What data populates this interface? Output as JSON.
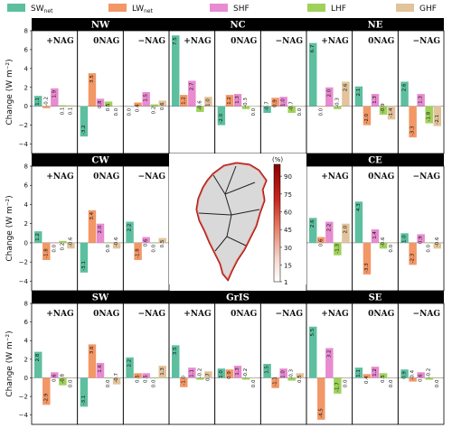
{
  "legend": [
    {
      "label": "SWnet",
      "color": "#5dbf9f"
    },
    {
      "label": "LWnet",
      "color": "#f29766"
    },
    {
      "label": "SHF",
      "color": "#e88bd0"
    },
    {
      "label": "LHF",
      "color": "#9fd15a"
    },
    {
      "label": "GHF",
      "color": "#e2c39b"
    }
  ],
  "y_axis_label": "Change (W m⁻²)",
  "scenarios": [
    "+NAG",
    "0NAG",
    "−NAG"
  ],
  "map": {
    "colorbar_title": "(%)",
    "colorbar_ticks": [
      "90",
      "75",
      "60",
      "45",
      "30",
      "15",
      "1"
    ],
    "colorbar_range": [
      1,
      100
    ]
  },
  "chart_data": [
    {
      "type": "bar",
      "region": "NW",
      "ylim": [
        -5,
        8
      ],
      "yticks": [
        -4,
        -2,
        0,
        2,
        4,
        6,
        8
      ],
      "series": [
        {
          "name": "SWnet",
          "values": [
            1.1,
            -3.2,
            0.0
          ]
        },
        {
          "name": "LWnet",
          "values": [
            -0.2,
            3.5,
            0.4
          ]
        },
        {
          "name": "SHF",
          "values": [
            1.9,
            0.8,
            1.5
          ]
        },
        {
          "name": "LHF",
          "values": [
            0.1,
            0.5,
            0.2
          ]
        },
        {
          "name": "GHF",
          "values": [
            0.1,
            0.0,
            0.6
          ]
        }
      ]
    },
    {
      "type": "bar",
      "region": "NC",
      "ylim": [
        -5,
        8
      ],
      "yticks": [],
      "series": [
        {
          "name": "SWnet",
          "values": [
            7.5,
            -2.0,
            -0.7
          ]
        },
        {
          "name": "LWnet",
          "values": [
            1.2,
            1.2,
            0.9
          ]
        },
        {
          "name": "SHF",
          "values": [
            2.7,
            1.3,
            1.0
          ]
        },
        {
          "name": "LHF",
          "values": [
            -0.6,
            -0.3,
            -0.7
          ]
        },
        {
          "name": "GHF",
          "values": [
            1.0,
            0.0,
            0.0
          ]
        }
      ]
    },
    {
      "type": "bar",
      "region": "NE",
      "ylim": [
        -5,
        8
      ],
      "yticks": [],
      "series": [
        {
          "name": "SWnet",
          "values": [
            6.7,
            2.1,
            2.6
          ]
        },
        {
          "name": "LWnet",
          "values": [
            0.0,
            -2.0,
            -3.3
          ]
        },
        {
          "name": "SHF",
          "values": [
            2.0,
            1.3,
            1.3
          ]
        },
        {
          "name": "LHF",
          "values": [
            -0.3,
            -0.9,
            -1.8
          ]
        },
        {
          "name": "GHF",
          "values": [
            2.6,
            -1.4,
            -2.1
          ]
        }
      ]
    },
    {
      "type": "bar",
      "region": "CW",
      "ylim": [
        -5,
        8
      ],
      "yticks": [
        -4,
        -2,
        0,
        2,
        4,
        6,
        8
      ],
      "series": [
        {
          "name": "SWnet",
          "values": [
            1.2,
            -3.1,
            2.2
          ]
        },
        {
          "name": "LWnet",
          "values": [
            -1.8,
            3.4,
            -1.8
          ]
        },
        {
          "name": "SHF",
          "values": [
            0.0,
            2.0,
            0.6
          ]
        },
        {
          "name": "LHF",
          "values": [
            0.2,
            0.0,
            0.0
          ]
        },
        {
          "name": "GHF",
          "values": [
            -0.6,
            -0.6,
            0.5
          ]
        }
      ]
    },
    {
      "type": "bar",
      "region": "CE",
      "ylim": [
        -5,
        8
      ],
      "yticks": [],
      "series": [
        {
          "name": "SWnet",
          "values": [
            2.6,
            4.3,
            1.0
          ]
        },
        {
          "name": "LWnet",
          "values": [
            0.6,
            -3.3,
            -2.3
          ]
        },
        {
          "name": "SHF",
          "values": [
            2.2,
            1.4,
            0.9
          ]
        },
        {
          "name": "LHF",
          "values": [
            -1.3,
            -0.6,
            0.0
          ]
        },
        {
          "name": "GHF",
          "values": [
            2.0,
            0.0,
            -0.6
          ]
        }
      ]
    },
    {
      "type": "bar",
      "region": "SW",
      "ylim": [
        -5,
        8
      ],
      "yticks": [
        -4,
        -2,
        0,
        2,
        4,
        6,
        8
      ],
      "series": [
        {
          "name": "SWnet",
          "values": [
            2.8,
            -3.1,
            2.2
          ]
        },
        {
          "name": "LWnet",
          "values": [
            -2.9,
            3.6,
            0.5
          ]
        },
        {
          "name": "SHF",
          "values": [
            0.6,
            1.6,
            0.5
          ]
        },
        {
          "name": "LHF",
          "values": [
            -0.8,
            0.0,
            0.0
          ]
        },
        {
          "name": "GHF",
          "values": [
            0.0,
            -0.7,
            1.3
          ]
        }
      ]
    },
    {
      "type": "bar",
      "region": "GrIS",
      "ylim": [
        -5,
        8
      ],
      "yticks": [],
      "series": [
        {
          "name": "SWnet",
          "values": [
            3.5,
            1.0,
            1.5
          ]
        },
        {
          "name": "LWnet",
          "values": [
            -1.0,
            0.9,
            -1.1
          ]
        },
        {
          "name": "SHF",
          "values": [
            1.1,
            1.3,
            1.0
          ]
        },
        {
          "name": "LHF",
          "values": [
            -0.2,
            -0.2,
            -0.3
          ]
        },
        {
          "name": "GHF",
          "values": [
            0.7,
            0.0,
            0.5
          ]
        }
      ]
    },
    {
      "type": "bar",
      "region": "SE",
      "ylim": [
        -5,
        8
      ],
      "yticks": [],
      "series": [
        {
          "name": "SWnet",
          "values": [
            5.5,
            1.1,
            0.9
          ]
        },
        {
          "name": "LWnet",
          "values": [
            -4.5,
            0.4,
            -0.4
          ]
        },
        {
          "name": "SHF",
          "values": [
            3.2,
            1.2,
            0.6
          ]
        },
        {
          "name": "LHF",
          "values": [
            -1.7,
            0.5,
            -0.2
          ]
        },
        {
          "name": "GHF",
          "values": [
            0.0,
            0.0,
            0.0
          ]
        }
      ]
    }
  ]
}
